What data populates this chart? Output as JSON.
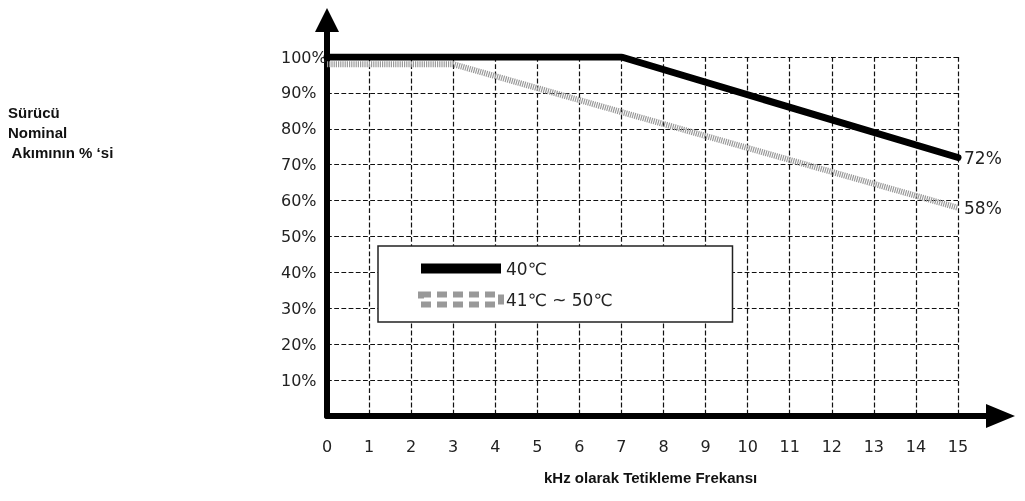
{
  "chart_data": {
    "type": "line",
    "xlabel": "kHz olarak Tetikleme Frekansı",
    "annotations": [
      "Sürücü\nNominal\n Akımının % ‘si"
    ],
    "series": [
      {
        "name": "40℃",
        "color": "#000000",
        "line_style": "solid",
        "x": [
          0,
          7,
          15
        ],
        "values": [
          100,
          100,
          72
        ],
        "value_labels": [
          null,
          null,
          "72%"
        ]
      },
      {
        "name": "41℃ ~ 50℃",
        "color": "#999999",
        "line_style": "dotted",
        "x": [
          0,
          3,
          15
        ],
        "values": [
          98,
          98,
          58
        ],
        "value_labels": [
          null,
          null,
          "58%"
        ]
      }
    ],
    "xlim": [
      0,
      15
    ],
    "xticks": [
      0,
      1,
      2,
      3,
      4,
      5,
      6,
      7,
      8,
      9,
      10,
      11,
      12,
      13,
      14,
      15
    ],
    "ylim": [
      0,
      100
    ],
    "yticks": [
      {
        "value": 0,
        "label": null
      },
      {
        "value": 10,
        "label": "10%"
      },
      {
        "value": 20,
        "label": "20%"
      },
      {
        "value": 30,
        "label": "30%"
      },
      {
        "value": 40,
        "label": "40%"
      },
      {
        "value": 50,
        "label": "50%"
      },
      {
        "value": 60,
        "label": "60%"
      },
      {
        "value": 70,
        "label": "70%"
      },
      {
        "value": 80,
        "label": "80%"
      },
      {
        "value": 90,
        "label": "90%"
      },
      {
        "value": 100,
        "label": "100%"
      }
    ],
    "grid": true,
    "legend": "center left",
    "marker": "none"
  }
}
